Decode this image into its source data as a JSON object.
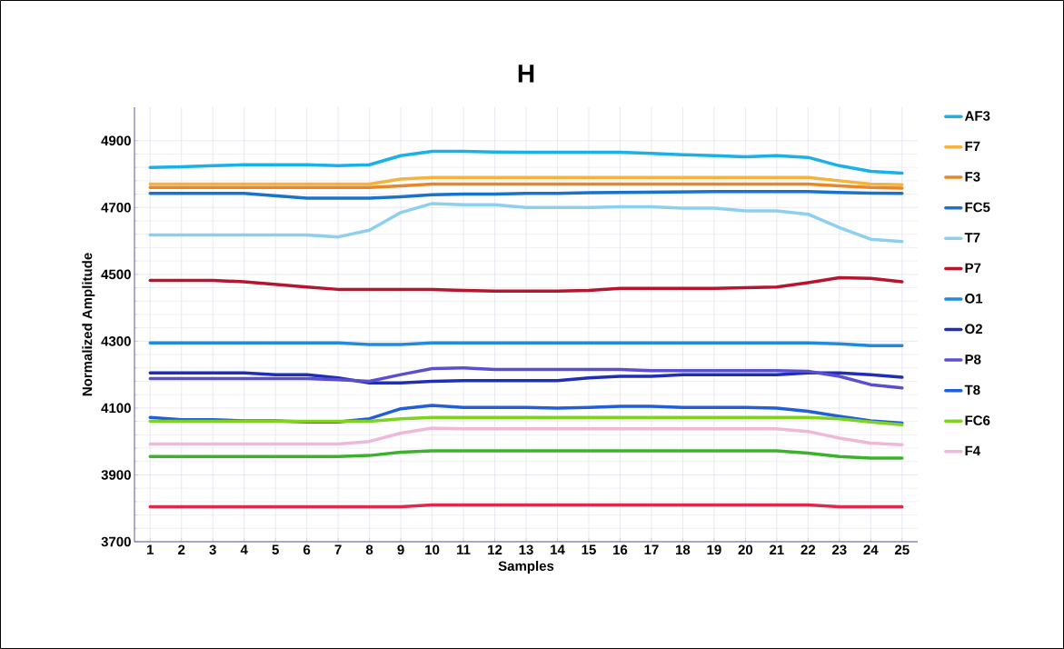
{
  "chart_data": {
    "type": "line",
    "title": "H",
    "xlabel": "Samples",
    "ylabel": "Normalized Amplitude",
    "categories": [
      "1",
      "2",
      "3",
      "4",
      "5",
      "6",
      "7",
      "8",
      "9",
      "10",
      "11",
      "12",
      "13",
      "14",
      "15",
      "16",
      "17",
      "18",
      "19",
      "20",
      "21",
      "22",
      "23",
      "24",
      "25"
    ],
    "ylim": [
      3700,
      5000
    ],
    "yticks": [
      3700,
      3900,
      4100,
      4300,
      4500,
      4700,
      4900
    ],
    "grid": true,
    "legend": "right",
    "marker": "none",
    "series": [
      {
        "name": "AF3",
        "color": "#1ab0e8",
        "values": [
          4820,
          4822,
          4825,
          4828,
          4828,
          4828,
          4825,
          4828,
          4855,
          4868,
          4868,
          4866,
          4865,
          4865,
          4865,
          4865,
          4862,
          4858,
          4855,
          4852,
          4855,
          4850,
          4825,
          4808,
          4803
        ]
      },
      {
        "name": "F7",
        "color": "#f5b23c",
        "values": [
          4770,
          4770,
          4770,
          4770,
          4770,
          4770,
          4770,
          4770,
          4785,
          4790,
          4790,
          4790,
          4790,
          4790,
          4790,
          4790,
          4790,
          4790,
          4790,
          4790,
          4790,
          4790,
          4780,
          4770,
          4768
        ]
      },
      {
        "name": "F3",
        "color": "#e8872a",
        "values": [
          4760,
          4760,
          4760,
          4760,
          4760,
          4760,
          4760,
          4760,
          4765,
          4770,
          4770,
          4770,
          4770,
          4770,
          4770,
          4770,
          4770,
          4770,
          4770,
          4770,
          4770,
          4770,
          4765,
          4760,
          4758
        ]
      },
      {
        "name": "FC5",
        "color": "#1a73c8",
        "values": [
          4742,
          4742,
          4742,
          4742,
          4735,
          4728,
          4728,
          4728,
          4732,
          4738,
          4740,
          4740,
          4742,
          4742,
          4744,
          4745,
          4746,
          4747,
          4748,
          4748,
          4748,
          4748,
          4745,
          4743,
          4742
        ]
      },
      {
        "name": "T7",
        "color": "#8ccfee",
        "values": [
          4618,
          4618,
          4618,
          4618,
          4618,
          4618,
          4612,
          4632,
          4685,
          4712,
          4708,
          4708,
          4700,
          4700,
          4700,
          4702,
          4702,
          4698,
          4698,
          4690,
          4690,
          4680,
          4640,
          4605,
          4598
        ]
      },
      {
        "name": "P7",
        "color": "#b5162e",
        "values": [
          4482,
          4482,
          4482,
          4478,
          4470,
          4462,
          4455,
          4455,
          4455,
          4455,
          4452,
          4450,
          4450,
          4450,
          4452,
          4458,
          4458,
          4458,
          4458,
          4460,
          4462,
          4475,
          4490,
          4488,
          4478
        ]
      },
      {
        "name": "O1",
        "color": "#1e8ae0",
        "values": [
          4295,
          4295,
          4295,
          4295,
          4295,
          4295,
          4295,
          4290,
          4290,
          4295,
          4295,
          4295,
          4295,
          4295,
          4295,
          4295,
          4295,
          4295,
          4295,
          4295,
          4295,
          4295,
          4292,
          4287,
          4287
        ]
      },
      {
        "name": "O2",
        "color": "#1f2fb5",
        "values": [
          4205,
          4205,
          4205,
          4205,
          4200,
          4200,
          4190,
          4175,
          4175,
          4180,
          4182,
          4182,
          4182,
          4182,
          4190,
          4195,
          4195,
          4200,
          4200,
          4200,
          4200,
          4205,
          4205,
          4200,
          4192
        ]
      },
      {
        "name": "P8",
        "color": "#5b4fd0",
        "values": [
          4188,
          4188,
          4188,
          4188,
          4188,
          4188,
          4185,
          4180,
          4200,
          4218,
          4220,
          4215,
          4215,
          4215,
          4215,
          4215,
          4212,
          4212,
          4212,
          4212,
          4212,
          4210,
          4195,
          4170,
          4160
        ]
      },
      {
        "name": "T8",
        "color": "#1f5fd8",
        "values": [
          4072,
          4065,
          4065,
          4062,
          4062,
          4058,
          4058,
          4068,
          4098,
          4108,
          4102,
          4102,
          4102,
          4100,
          4102,
          4105,
          4105,
          4102,
          4102,
          4102,
          4100,
          4090,
          4075,
          4062,
          4055
        ]
      },
      {
        "name": "FC6",
        "color": "#7ed321",
        "values": [
          4060,
          4060,
          4060,
          4060,
          4060,
          4060,
          4060,
          4060,
          4068,
          4072,
          4072,
          4072,
          4072,
          4072,
          4072,
          4072,
          4072,
          4072,
          4072,
          4072,
          4072,
          4072,
          4068,
          4058,
          4050
        ]
      },
      {
        "name": "F4",
        "color": "#f0b8d8",
        "values": [
          3992,
          3992,
          3992,
          3992,
          3992,
          3992,
          3992,
          4000,
          4025,
          4040,
          4038,
          4038,
          4038,
          4038,
          4038,
          4038,
          4038,
          4038,
          4038,
          4038,
          4038,
          4030,
          4010,
          3995,
          3990
        ]
      },
      {
        "color": "#3cb22c",
        "values": [
          3955,
          3955,
          3955,
          3955,
          3955,
          3955,
          3955,
          3958,
          3968,
          3972,
          3972,
          3972,
          3972,
          3972,
          3972,
          3972,
          3972,
          3972,
          3972,
          3972,
          3972,
          3965,
          3955,
          3950,
          3950
        ]
      },
      {
        "color": "#e0284a",
        "values": [
          3805,
          3805,
          3805,
          3805,
          3805,
          3805,
          3805,
          3805,
          3805,
          3810,
          3810,
          3810,
          3810,
          3810,
          3810,
          3810,
          3810,
          3810,
          3810,
          3810,
          3810,
          3810,
          3805,
          3805,
          3805
        ]
      }
    ]
  }
}
